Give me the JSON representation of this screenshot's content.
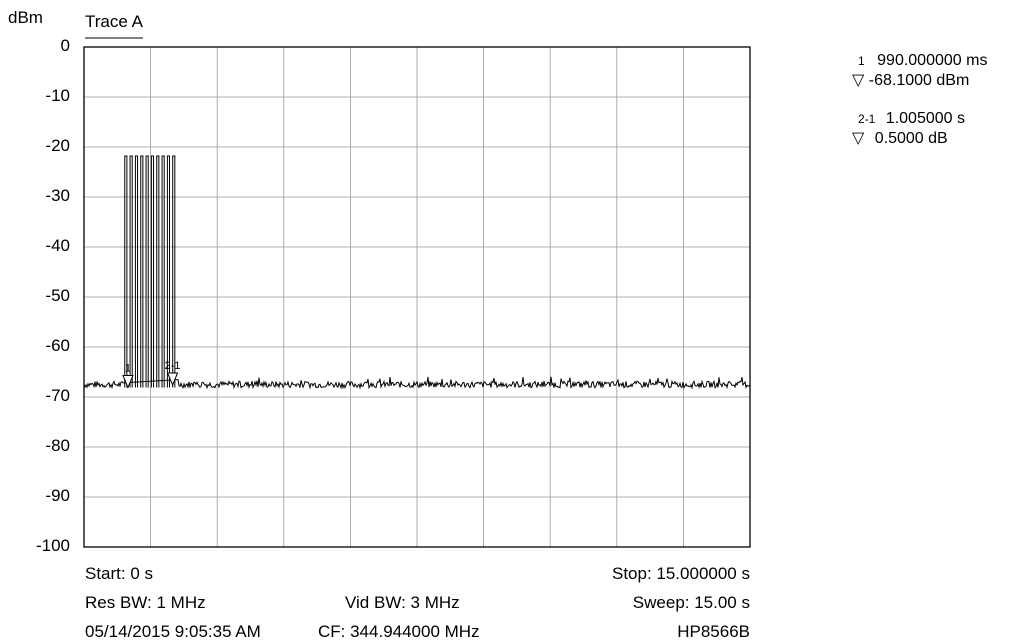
{
  "units_label": "dBm",
  "trace_label": "Trace A",
  "chart_data": {
    "type": "line",
    "title": "",
    "xlabel": "",
    "ylabel": "dBm",
    "xlim": [
      0,
      15.0
    ],
    "ylim": [
      -100,
      0
    ],
    "grid": true,
    "y_ticks": [
      "0",
      "-10",
      "-20",
      "-30",
      "-40",
      "-50",
      "-60",
      "-70",
      "-80",
      "-90",
      "-100"
    ],
    "noise_floor_dbm": -67.5,
    "pulses": {
      "start_s": 0.9,
      "end_s": 2.1,
      "count": 10,
      "peak_dbm": -21.8
    },
    "markers": [
      {
        "label": "1",
        "x_s": 0.99,
        "y_dbm": -68.1
      },
      {
        "label": "2-1",
        "x_s": 1.995,
        "y_dbm": -67.6
      }
    ]
  },
  "marker_readouts": [
    {
      "id": "1",
      "value1": "990.000000 ms",
      "value2": "-68.1000 dBm"
    },
    {
      "id": "2-1",
      "value1": "1.005000 s",
      "value2": "0.5000 dB"
    }
  ],
  "footer": {
    "start": "Start: 0 s",
    "stop": "Stop: 15.000000 s",
    "res_bw": "Res BW: 1 MHz",
    "vid_bw": "Vid BW: 3 MHz",
    "sweep": "Sweep: 15.00 s",
    "datetime": "05/14/2015 9:05:35 AM",
    "cf": "CF: 344.944000 MHz",
    "instrument": "HP8566B"
  }
}
